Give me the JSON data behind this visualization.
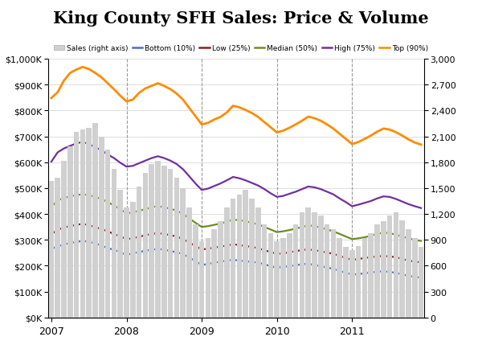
{
  "title": "King County SFH Sales: Price & Volume",
  "sales": [
    1580,
    1620,
    1820,
    1980,
    2150,
    2180,
    2200,
    2250,
    2100,
    1950,
    1720,
    1480,
    1280,
    1340,
    1520,
    1680,
    1780,
    1820,
    1760,
    1720,
    1620,
    1500,
    1280,
    1080,
    880,
    920,
    1020,
    1120,
    1280,
    1380,
    1420,
    1480,
    1380,
    1280,
    1080,
    980,
    880,
    920,
    980,
    1080,
    1220,
    1280,
    1220,
    1180,
    1080,
    1020,
    920,
    820,
    780,
    830,
    920,
    980,
    1080,
    1120,
    1180,
    1220,
    1130,
    1020,
    920,
    820
  ],
  "bottom_10": [
    265000,
    275000,
    282000,
    288000,
    292000,
    296000,
    292000,
    287000,
    278000,
    268000,
    262000,
    252000,
    242000,
    248000,
    253000,
    258000,
    262000,
    265000,
    262000,
    257000,
    252000,
    245000,
    232000,
    218000,
    203000,
    207000,
    212000,
    216000,
    220000,
    223000,
    220000,
    217000,
    215000,
    212000,
    206000,
    198000,
    192000,
    196000,
    198000,
    202000,
    206000,
    208000,
    203000,
    198000,
    193000,
    188000,
    180000,
    173000,
    166000,
    168000,
    171000,
    174000,
    177000,
    179000,
    176000,
    173000,
    166000,
    161000,
    157000,
    154000
  ],
  "low_25": [
    322000,
    338000,
    348000,
    353000,
    358000,
    362000,
    357000,
    349000,
    342000,
    333000,
    323000,
    313000,
    303000,
    306000,
    312000,
    318000,
    323000,
    326000,
    323000,
    318000,
    313000,
    303000,
    290000,
    276000,
    263000,
    266000,
    270000,
    274000,
    278000,
    283000,
    280000,
    276000,
    273000,
    268000,
    260000,
    253000,
    246000,
    248000,
    252000,
    256000,
    261000,
    263000,
    260000,
    256000,
    251000,
    246000,
    238000,
    230000,
    223000,
    226000,
    230000,
    233000,
    236000,
    238000,
    236000,
    233000,
    226000,
    220000,
    216000,
    213000
  ],
  "median_50": [
    428000,
    452000,
    462000,
    468000,
    473000,
    476000,
    473000,
    466000,
    458000,
    446000,
    433000,
    418000,
    403000,
    406000,
    413000,
    418000,
    426000,
    430000,
    426000,
    420000,
    413000,
    400000,
    383000,
    366000,
    350000,
    353000,
    358000,
    363000,
    370000,
    378000,
    376000,
    372000,
    366000,
    360000,
    350000,
    340000,
    330000,
    333000,
    338000,
    343000,
    350000,
    356000,
    353000,
    348000,
    340000,
    333000,
    323000,
    313000,
    303000,
    306000,
    310000,
    316000,
    323000,
    328000,
    326000,
    320000,
    313000,
    306000,
    300000,
    296000
  ],
  "high_75": [
    602000,
    638000,
    653000,
    663000,
    673000,
    678000,
    670000,
    658000,
    646000,
    630000,
    616000,
    598000,
    583000,
    586000,
    596000,
    606000,
    616000,
    623000,
    616000,
    606000,
    593000,
    573000,
    546000,
    518000,
    493000,
    498000,
    508000,
    518000,
    530000,
    543000,
    538000,
    530000,
    520000,
    510000,
    496000,
    480000,
    466000,
    470000,
    478000,
    486000,
    496000,
    506000,
    503000,
    496000,
    486000,
    476000,
    460000,
    446000,
    430000,
    436000,
    443000,
    450000,
    460000,
    468000,
    466000,
    458000,
    448000,
    438000,
    430000,
    423000
  ],
  "top_90": [
    848000,
    870000,
    915000,
    945000,
    958000,
    968000,
    960000,
    945000,
    928000,
    905000,
    882000,
    857000,
    835000,
    842000,
    868000,
    885000,
    895000,
    905000,
    895000,
    882000,
    865000,
    842000,
    810000,
    778000,
    746000,
    752000,
    765000,
    775000,
    792000,
    818000,
    812000,
    802000,
    790000,
    775000,
    755000,
    735000,
    715000,
    722000,
    733000,
    746000,
    760000,
    776000,
    770000,
    760000,
    746000,
    730000,
    710000,
    690000,
    670000,
    678000,
    690000,
    703000,
    718000,
    730000,
    726000,
    716000,
    703000,
    688000,
    676000,
    668000
  ],
  "bar_color": "#d0d0d0",
  "line_colors": {
    "bottom": "#4472c4",
    "low": "#8b2020",
    "median": "#6b8e23",
    "high": "#7030a0",
    "top": "#ff8c00"
  },
  "legend_labels": [
    "Sales (right axis)",
    "Bottom (10%)",
    "Low (25%)",
    "Median (50%)",
    "High (75%)",
    "Top (90%)"
  ],
  "ylim_left": [
    0,
    1000000
  ],
  "ylim_right": [
    0,
    3000
  ],
  "yticks_left": [
    0,
    100000,
    200000,
    300000,
    400000,
    500000,
    600000,
    700000,
    800000,
    900000,
    1000000
  ],
  "yticks_right": [
    0,
    300,
    600,
    900,
    1200,
    1500,
    1800,
    2100,
    2400,
    2700,
    3000
  ],
  "year_ticks": [
    0,
    12,
    24,
    36,
    48
  ],
  "year_labels": [
    "2007",
    "2008",
    "2009",
    "2010",
    "2011"
  ],
  "background_color": "#ffffff",
  "grid_color": "#d8d8d8"
}
